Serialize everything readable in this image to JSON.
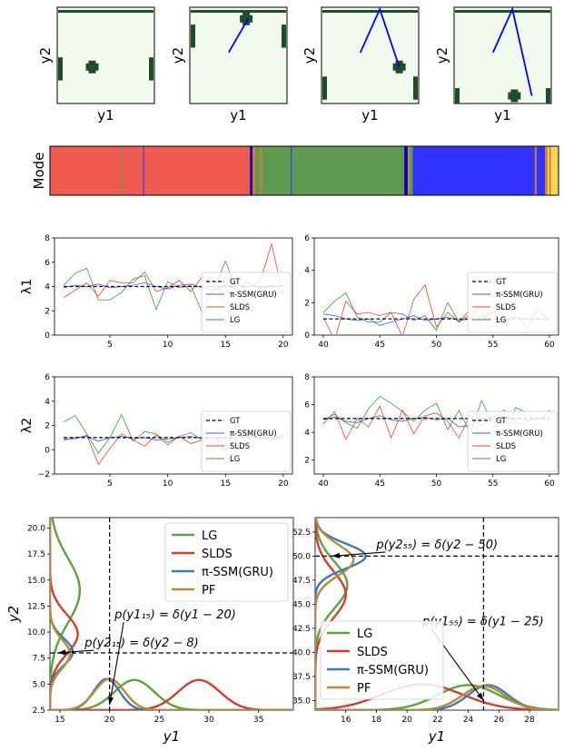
{
  "frames": {
    "xlabel": "y1",
    "ylabel": "y2",
    "bg_color": "#f2faf0",
    "blob_color": "#1f4d28",
    "path_color": "#0000ff",
    "panels": [
      {
        "paddle_left": [
          52,
          76
        ],
        "paddle_right": [
          52,
          76
        ],
        "ball": [
          36,
          62
        ],
        "top_bar": true,
        "path": []
      },
      {
        "paddle_left": [
          18,
          42
        ],
        "paddle_right": [
          18,
          42
        ],
        "ball": [
          58,
          12
        ],
        "top_bar": true,
        "path": [
          [
            40,
            47
          ],
          [
            60,
            12
          ]
        ]
      },
      {
        "paddle_left": [
          72,
          96
        ],
        "paddle_right": [
          72,
          96
        ],
        "ball": [
          80,
          62
        ],
        "top_bar": true,
        "path": [
          [
            40,
            47
          ],
          [
            60,
            2
          ],
          [
            80,
            62
          ]
        ]
      },
      {
        "paddle_left": [
          84,
          100
        ],
        "paddle_right": [
          84,
          100
        ],
        "ball": [
          62,
          92
        ],
        "top_bar": true,
        "path": [
          [
            40,
            47
          ],
          [
            60,
            2
          ],
          [
            80,
            92
          ]
        ]
      }
    ]
  },
  "mode": {
    "ylabel": "Mode",
    "colors": {
      "red": "#ef5b4f",
      "green": "#5f9950",
      "blue": "#3333ff",
      "darkblue": "#0000cc",
      "orange": "#d6812a",
      "yellow": "#f6d55c"
    },
    "segments": [
      {
        "start": 0,
        "end": 42,
        "c": "red"
      },
      {
        "start": 42,
        "end": 42.6,
        "c": "green"
      },
      {
        "start": 42.6,
        "end": 55,
        "c": "red"
      },
      {
        "start": 55,
        "end": 55.6,
        "c": "blue"
      },
      {
        "start": 55.6,
        "end": 118,
        "c": "red"
      },
      {
        "start": 118,
        "end": 119.5,
        "c": "darkblue"
      },
      {
        "start": 119.5,
        "end": 121,
        "c": "orange"
      },
      {
        "start": 121,
        "end": 124,
        "c": "green"
      },
      {
        "start": 124,
        "end": 125,
        "c": "orange"
      },
      {
        "start": 125,
        "end": 142,
        "c": "green"
      },
      {
        "start": 142,
        "end": 142.6,
        "c": "blue"
      },
      {
        "start": 142.6,
        "end": 209,
        "c": "green"
      },
      {
        "start": 209,
        "end": 211,
        "c": "darkblue"
      },
      {
        "start": 211,
        "end": 212,
        "c": "orange"
      },
      {
        "start": 212,
        "end": 214,
        "c": "green"
      },
      {
        "start": 214,
        "end": 286,
        "c": "blue"
      },
      {
        "start": 286,
        "end": 287,
        "c": "orange"
      },
      {
        "start": 287,
        "end": 292,
        "c": "blue"
      },
      {
        "start": 292,
        "end": 293.5,
        "c": "orange"
      },
      {
        "start": 293.5,
        "end": 294.5,
        "c": "yellow"
      },
      {
        "start": 294.5,
        "end": 295.5,
        "c": "orange"
      },
      {
        "start": 295.5,
        "end": 300,
        "c": "yellow"
      }
    ],
    "total": 300
  },
  "chart_data": [
    {
      "type": "line",
      "ylabel": "λ1",
      "xlim": [
        0.2,
        20.8
      ],
      "ylim": [
        0,
        8
      ],
      "xticks": [
        5,
        10,
        15,
        20
      ],
      "yticks": [
        0,
        2,
        4,
        6,
        8
      ],
      "x": [
        1,
        2,
        3,
        4,
        5,
        6,
        7,
        8,
        9,
        10,
        11,
        12,
        13,
        14,
        15,
        16,
        17,
        18,
        19,
        20
      ],
      "series": [
        {
          "name": "GT",
          "color": "#000000",
          "dash": true,
          "values": [
            4,
            4,
            4,
            4,
            4,
            4,
            4,
            4,
            4,
            4,
            4,
            4,
            4,
            4,
            4,
            4,
            4,
            4,
            4,
            4
          ]
        },
        {
          "name": "π-SSM(GRU)",
          "color": "#3d5afe",
          "values": [
            3.9,
            4.1,
            4.0,
            4.2,
            3.9,
            4.0,
            4.1,
            4.3,
            4.0,
            3.8,
            4.1,
            4.2,
            3.9,
            3.7,
            4.1,
            4.0,
            4.3,
            3.9,
            4.0,
            4.1
          ]
        },
        {
          "name": "SLDS",
          "color": "#e8472c",
          "values": [
            3.1,
            3.7,
            4.3,
            3.2,
            4.5,
            4.3,
            4.3,
            5.2,
            3.6,
            3.9,
            4.5,
            3.6,
            4.8,
            3.7,
            4.0,
            3.8,
            4.0,
            4.4,
            7.5,
            3.2
          ]
        },
        {
          "name": "LG",
          "color": "#3c9a3c",
          "values": [
            4.1,
            5.1,
            5.5,
            2.9,
            2.9,
            3.5,
            4.6,
            4.9,
            2.1,
            4.4,
            3.9,
            4.1,
            1.8,
            3.8,
            6.1,
            3.6,
            3.7,
            3.9,
            4.1,
            3.5
          ]
        }
      ],
      "legend": "right"
    },
    {
      "type": "line",
      "ylabel": "",
      "xlim": [
        39.2,
        60.8
      ],
      "ylim": [
        0,
        6
      ],
      "xticks": [
        40,
        45,
        50,
        55,
        60
      ],
      "yticks": [
        0,
        2,
        4,
        6
      ],
      "x": [
        40,
        41,
        42,
        43,
        44,
        45,
        46,
        47,
        48,
        49,
        50,
        51,
        52,
        53,
        54,
        55,
        56,
        57,
        58,
        59,
        60
      ],
      "series": [
        {
          "name": "GT",
          "color": "#000000",
          "dash": true,
          "values": [
            1,
            1,
            1,
            1,
            1,
            1,
            1,
            1,
            1,
            1,
            1,
            1,
            1,
            1,
            1,
            1,
            1,
            1,
            1,
            1,
            1
          ]
        },
        {
          "name": "π-SSM(GRU)",
          "color": "#3d5afe",
          "values": [
            1.3,
            1.2,
            1.0,
            0.9,
            1.0,
            0.6,
            0.8,
            1.0,
            1.2,
            0.9,
            1.0,
            1.1,
            0.9,
            1.0,
            1.2,
            1.0,
            0.9,
            1.1,
            1.0,
            1.0,
            0.9
          ]
        },
        {
          "name": "SLDS",
          "color": "#e8472c",
          "values": [
            1.1,
            -0.3,
            2.1,
            1.3,
            1.4,
            1.2,
            1.4,
            -0.1,
            2.2,
            3.1,
            0.5,
            1.4,
            0.8,
            1.3,
            0.9,
            1.5,
            1.0,
            1.2,
            0.4,
            1.7,
            0.9
          ]
        },
        {
          "name": "LG",
          "color": "#3c9a3c",
          "values": [
            1.4,
            2.1,
            2.6,
            1.1,
            0.8,
            0.8,
            1.4,
            1.3,
            0.9,
            1.2,
            0.3,
            2.0,
            0.8,
            1.6,
            1.2,
            1.3,
            0.9,
            1.1,
            1.0,
            1.4,
            1.0
          ]
        }
      ],
      "legend": "right"
    },
    {
      "type": "line",
      "ylabel": "λ2",
      "xlim": [
        0.2,
        20.8
      ],
      "ylim": [
        -2,
        6
      ],
      "xticks": [
        5,
        10,
        15,
        20
      ],
      "yticks": [
        -2,
        0,
        2,
        4,
        6
      ],
      "x": [
        1,
        2,
        3,
        4,
        5,
        6,
        7,
        8,
        9,
        10,
        11,
        12,
        13,
        14,
        15,
        16,
        17,
        18,
        19,
        20
      ],
      "series": [
        {
          "name": "GT",
          "color": "#000000",
          "dash": true,
          "values": [
            1,
            1,
            1,
            1,
            1,
            1,
            1,
            1,
            1,
            1,
            1,
            1,
            1,
            1,
            1,
            1,
            1,
            1,
            1,
            1
          ]
        },
        {
          "name": "π-SSM(GRU)",
          "color": "#3d5afe",
          "values": [
            0.8,
            1.0,
            1.1,
            0.7,
            1.0,
            1.1,
            0.9,
            1.0,
            0.8,
            0.9,
            1.0,
            1.1,
            0.9,
            1.0,
            0.9,
            1.0,
            1.1,
            1.0,
            0.9,
            1.0
          ]
        },
        {
          "name": "SLDS",
          "color": "#e8472c",
          "values": [
            0.9,
            0.9,
            1.2,
            -1.2,
            0.1,
            1.3,
            0.8,
            0.3,
            1.2,
            0.4,
            1.1,
            0.5,
            0.8,
            1.3,
            -0.2,
            1.0,
            1.1,
            0.9,
            0.8,
            1.2
          ]
        },
        {
          "name": "LG",
          "color": "#3c9a3c",
          "values": [
            2.3,
            2.8,
            1.3,
            -0.3,
            1.0,
            2.9,
            0.7,
            1.5,
            1.3,
            0.6,
            1.1,
            1.4,
            0.8,
            1.0,
            0.2,
            1.7,
            1.3,
            1.0,
            1.0,
            1.3
          ]
        }
      ],
      "legend": "right"
    },
    {
      "type": "line",
      "ylabel": "",
      "xlim": [
        39.2,
        60.8
      ],
      "ylim": [
        1,
        8
      ],
      "xticks": [
        40,
        45,
        50,
        55,
        60
      ],
      "yticks": [
        2,
        4,
        6,
        8
      ],
      "x": [
        40,
        41,
        42,
        43,
        44,
        45,
        46,
        47,
        48,
        49,
        50,
        51,
        52,
        53,
        54,
        55,
        56,
        57,
        58,
        59,
        60
      ],
      "series": [
        {
          "name": "GT",
          "color": "#000000",
          "dash": true,
          "values": [
            5,
            5,
            5,
            5,
            5,
            5,
            5,
            5,
            5,
            5,
            5,
            5,
            5,
            5,
            5,
            5,
            5,
            5,
            5,
            5,
            5
          ]
        },
        {
          "name": "π-SSM(GRU)",
          "color": "#3d5afe",
          "values": [
            4.9,
            5.1,
            4.8,
            4.7,
            5.0,
            5.2,
            4.9,
            4.8,
            5.0,
            5.1,
            4.9,
            5.0,
            4.4,
            4.5,
            5.0,
            5.1,
            4.8,
            5.0,
            4.9,
            5.0,
            5.1
          ]
        },
        {
          "name": "SLDS",
          "color": "#e8472c",
          "values": [
            4.6,
            5.5,
            3.5,
            5.0,
            4.4,
            5.9,
            3.6,
            5.6,
            3.9,
            5.2,
            5.4,
            4.8,
            3.6,
            5.3,
            4.5,
            5.1,
            5.6,
            4.6,
            4.8,
            5.0,
            4.9
          ]
        },
        {
          "name": "LG",
          "color": "#3c9a3c",
          "values": [
            4.9,
            5.3,
            4.7,
            4.3,
            5.7,
            6.6,
            6.1,
            5.5,
            4.8,
            5.6,
            6.1,
            4.2,
            5.6,
            3.9,
            6.3,
            4.6,
            3.2,
            5.8,
            5.4,
            4.7,
            5.6
          ]
        }
      ],
      "legend": "right"
    },
    {
      "type": "line",
      "xlabel": "y1",
      "ylabel": "y2",
      "xlim": [
        14,
        38.5
      ],
      "ylim": [
        2.5,
        21
      ],
      "xticks": [
        15,
        20,
        25,
        30,
        35
      ],
      "yticks": [
        2.5,
        5.0,
        7.5,
        10.0,
        12.5,
        15.0,
        17.5,
        20.0
      ],
      "ytick_labels": [
        "2.5",
        "5.0",
        "7.5",
        "10.0",
        "12.5",
        "15.0",
        "17.5",
        "20.0"
      ],
      "vline": 20,
      "hline": 8,
      "x_series": [
        {
          "name": "LG",
          "color": "#5aa542",
          "mu": 22.5,
          "sigma": 2.0,
          "amp": 2.9
        },
        {
          "name": "SLDS",
          "color": "#d13e31",
          "mu": 29.0,
          "sigma": 2.1,
          "amp": 2.9
        },
        {
          "name": "π-SSM(GRU)",
          "color": "#3d7ab8",
          "mu": 19.7,
          "sigma": 1.3,
          "amp": 3.0
        },
        {
          "name": "PF",
          "color": "#b48c35",
          "mu": 20.0,
          "sigma": 1.5,
          "amp": 3.0
        }
      ],
      "y_series": [
        {
          "name": "LG",
          "color": "#5aa542",
          "mu": 14.0,
          "sigma": 3.1,
          "amp": 3.0
        },
        {
          "name": "SLDS",
          "color": "#d13e31",
          "mu": 9.8,
          "sigma": 1.9,
          "amp": 2.8
        },
        {
          "name": "π-SSM(GRU)",
          "color": "#3d7ab8",
          "mu": 8.1,
          "sigma": 1.3,
          "amp": 2.3
        },
        {
          "name": "PF",
          "color": "#b48c35",
          "mu": 7.9,
          "sigma": 1.4,
          "amp": 2.0
        }
      ],
      "annotations": [
        {
          "text": "p(y1₁₅) = δ(y1 − 20)",
          "tx": 20.5,
          "ty": 11.3,
          "ax": 20.0,
          "ay": 3.0
        },
        {
          "text": "p(y2₁₅) = δ(y2 − 8)",
          "tx": 17.5,
          "ty": 8.6,
          "ax": 14.8,
          "ay": 8.0
        }
      ],
      "legend": "upper-right"
    },
    {
      "type": "line",
      "xlabel": "y1",
      "ylabel": "",
      "xlim": [
        14,
        29.9
      ],
      "ylim": [
        34,
        54
      ],
      "xticks": [
        16,
        18,
        20,
        22,
        24,
        26,
        28
      ],
      "yticks": [
        35.0,
        37.5,
        40.0,
        42.5,
        45.0,
        47.5,
        50.0,
        52.5
      ],
      "ytick_labels": [
        "35.0",
        "37.5",
        "40.0",
        "42.5",
        "45.0",
        "47.5",
        "50.0",
        "52.5"
      ],
      "vline": 25,
      "hline": 50,
      "x_series": [
        {
          "name": "LG",
          "color": "#5aa542",
          "mu": 24.0,
          "sigma": 2.0,
          "amp": 2.6
        },
        {
          "name": "SLDS",
          "color": "#d13e31",
          "mu": 21.0,
          "sigma": 2.6,
          "amp": 2.7
        },
        {
          "name": "π-SSM(GRU)",
          "color": "#3d7ab8",
          "mu": 25.3,
          "sigma": 1.3,
          "amp": 2.6
        },
        {
          "name": "PF",
          "color": "#b48c35",
          "mu": 25.0,
          "sigma": 1.4,
          "amp": 2.5
        }
      ],
      "y_series": [
        {
          "name": "LG",
          "color": "#5aa542",
          "mu": 47.0,
          "sigma": 2.4,
          "amp": 2.1
        },
        {
          "name": "SLDS",
          "color": "#d13e31",
          "mu": 46.0,
          "sigma": 2.4,
          "amp": 2.0
        },
        {
          "name": "π-SSM(GRU)",
          "color": "#3d7ab8",
          "mu": 50.0,
          "sigma": 1.3,
          "amp": 3.3
        },
        {
          "name": "PF",
          "color": "#b48c35",
          "mu": 49.6,
          "sigma": 1.6,
          "amp": 2.5
        }
      ],
      "annotations": [
        {
          "text": "p(y2₅₅) = δ(y2 − 50)",
          "tx": 18.0,
          "ty": 50.8,
          "ax": 15.1,
          "ay": 50.0
        },
        {
          "text": "p(y1₅₅) = δ(y1 − 25)",
          "tx": 21.0,
          "ty": 42.8,
          "ax": 25.0,
          "ay": 35.0
        }
      ],
      "legend": "lower-left"
    }
  ]
}
